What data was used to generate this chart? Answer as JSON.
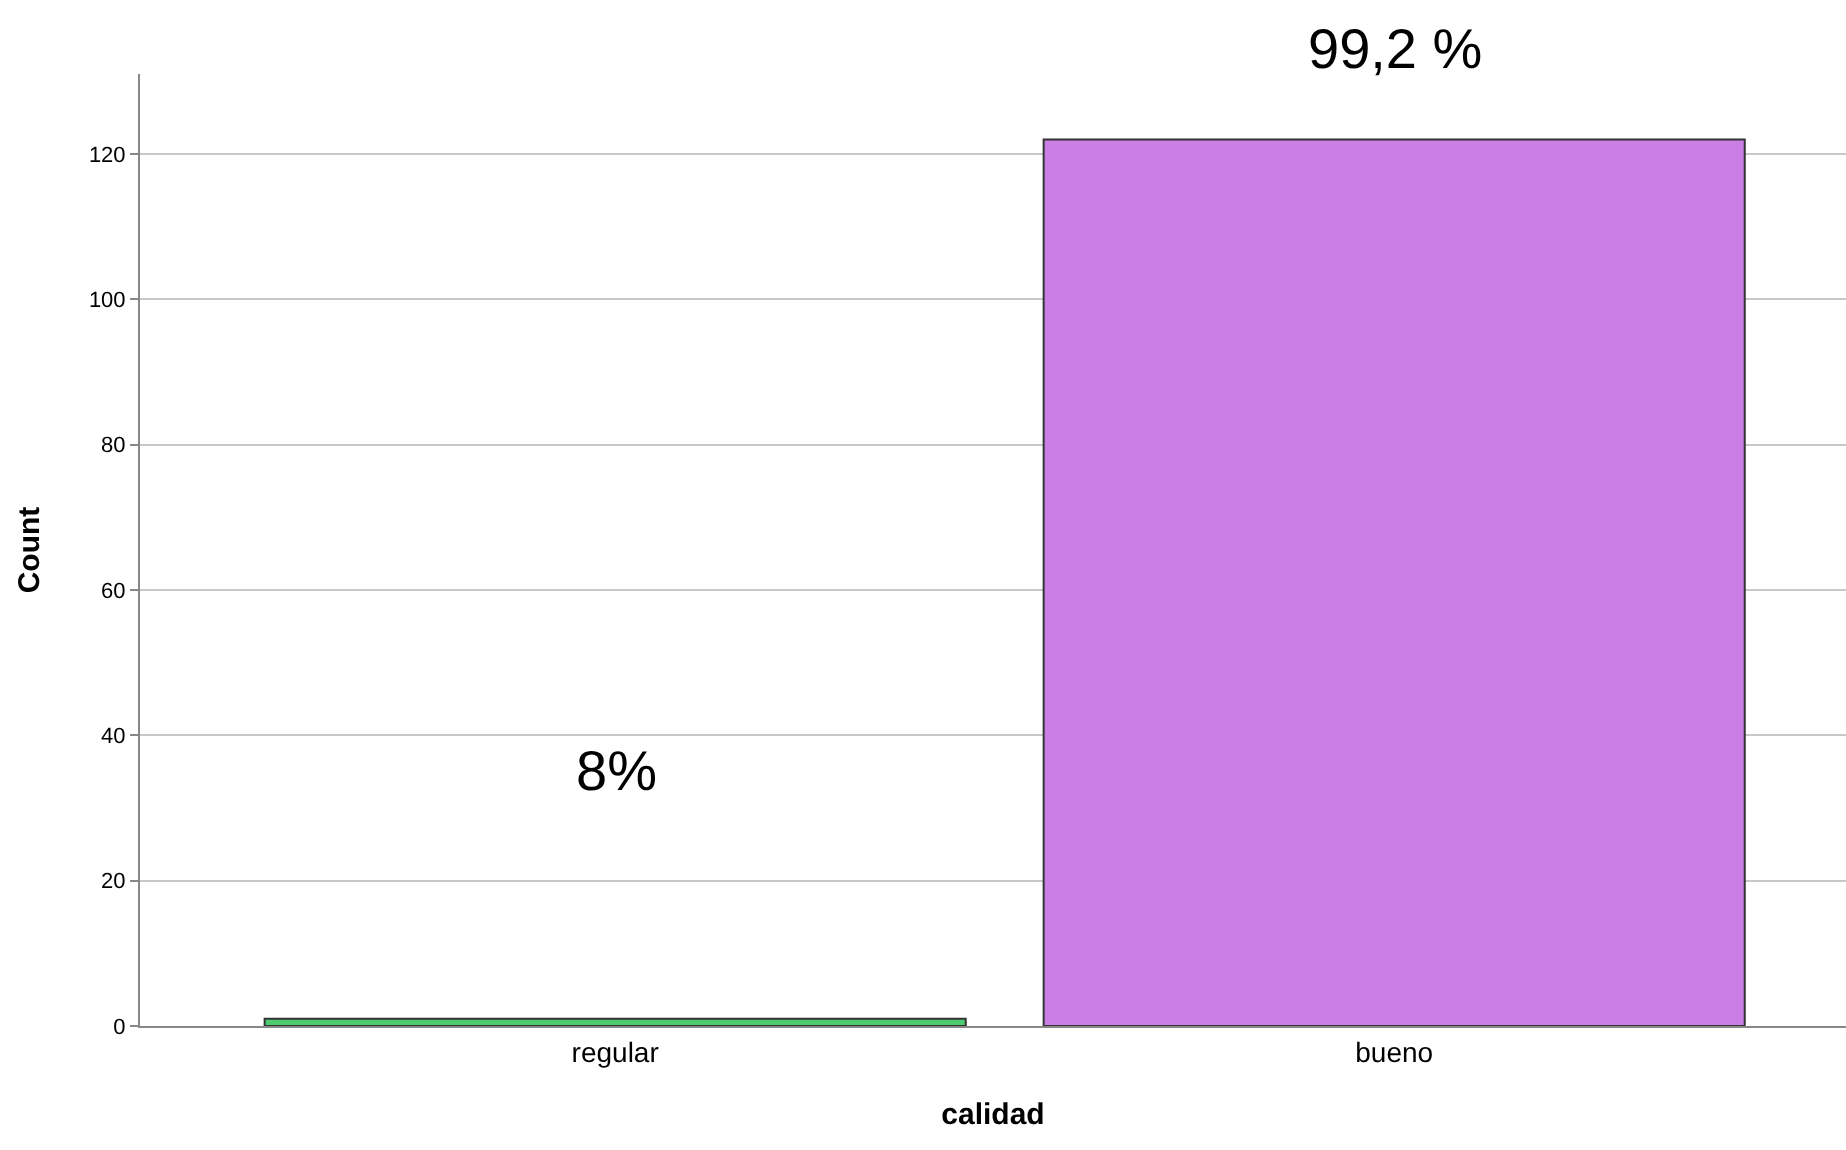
{
  "chart_data": {
    "type": "bar",
    "xlabel": "calidad",
    "ylabel": "Count",
    "categories": [
      "regular",
      "bueno"
    ],
    "values": [
      1,
      122
    ],
    "colors": [
      "#4ecb71",
      "#cb7fe6"
    ],
    "annotations": [
      "8%",
      "99,2 %"
    ],
    "ylim": [
      0,
      131
    ],
    "yticks": [
      0,
      20,
      40,
      60,
      80,
      100,
      120
    ],
    "grid": "y"
  }
}
